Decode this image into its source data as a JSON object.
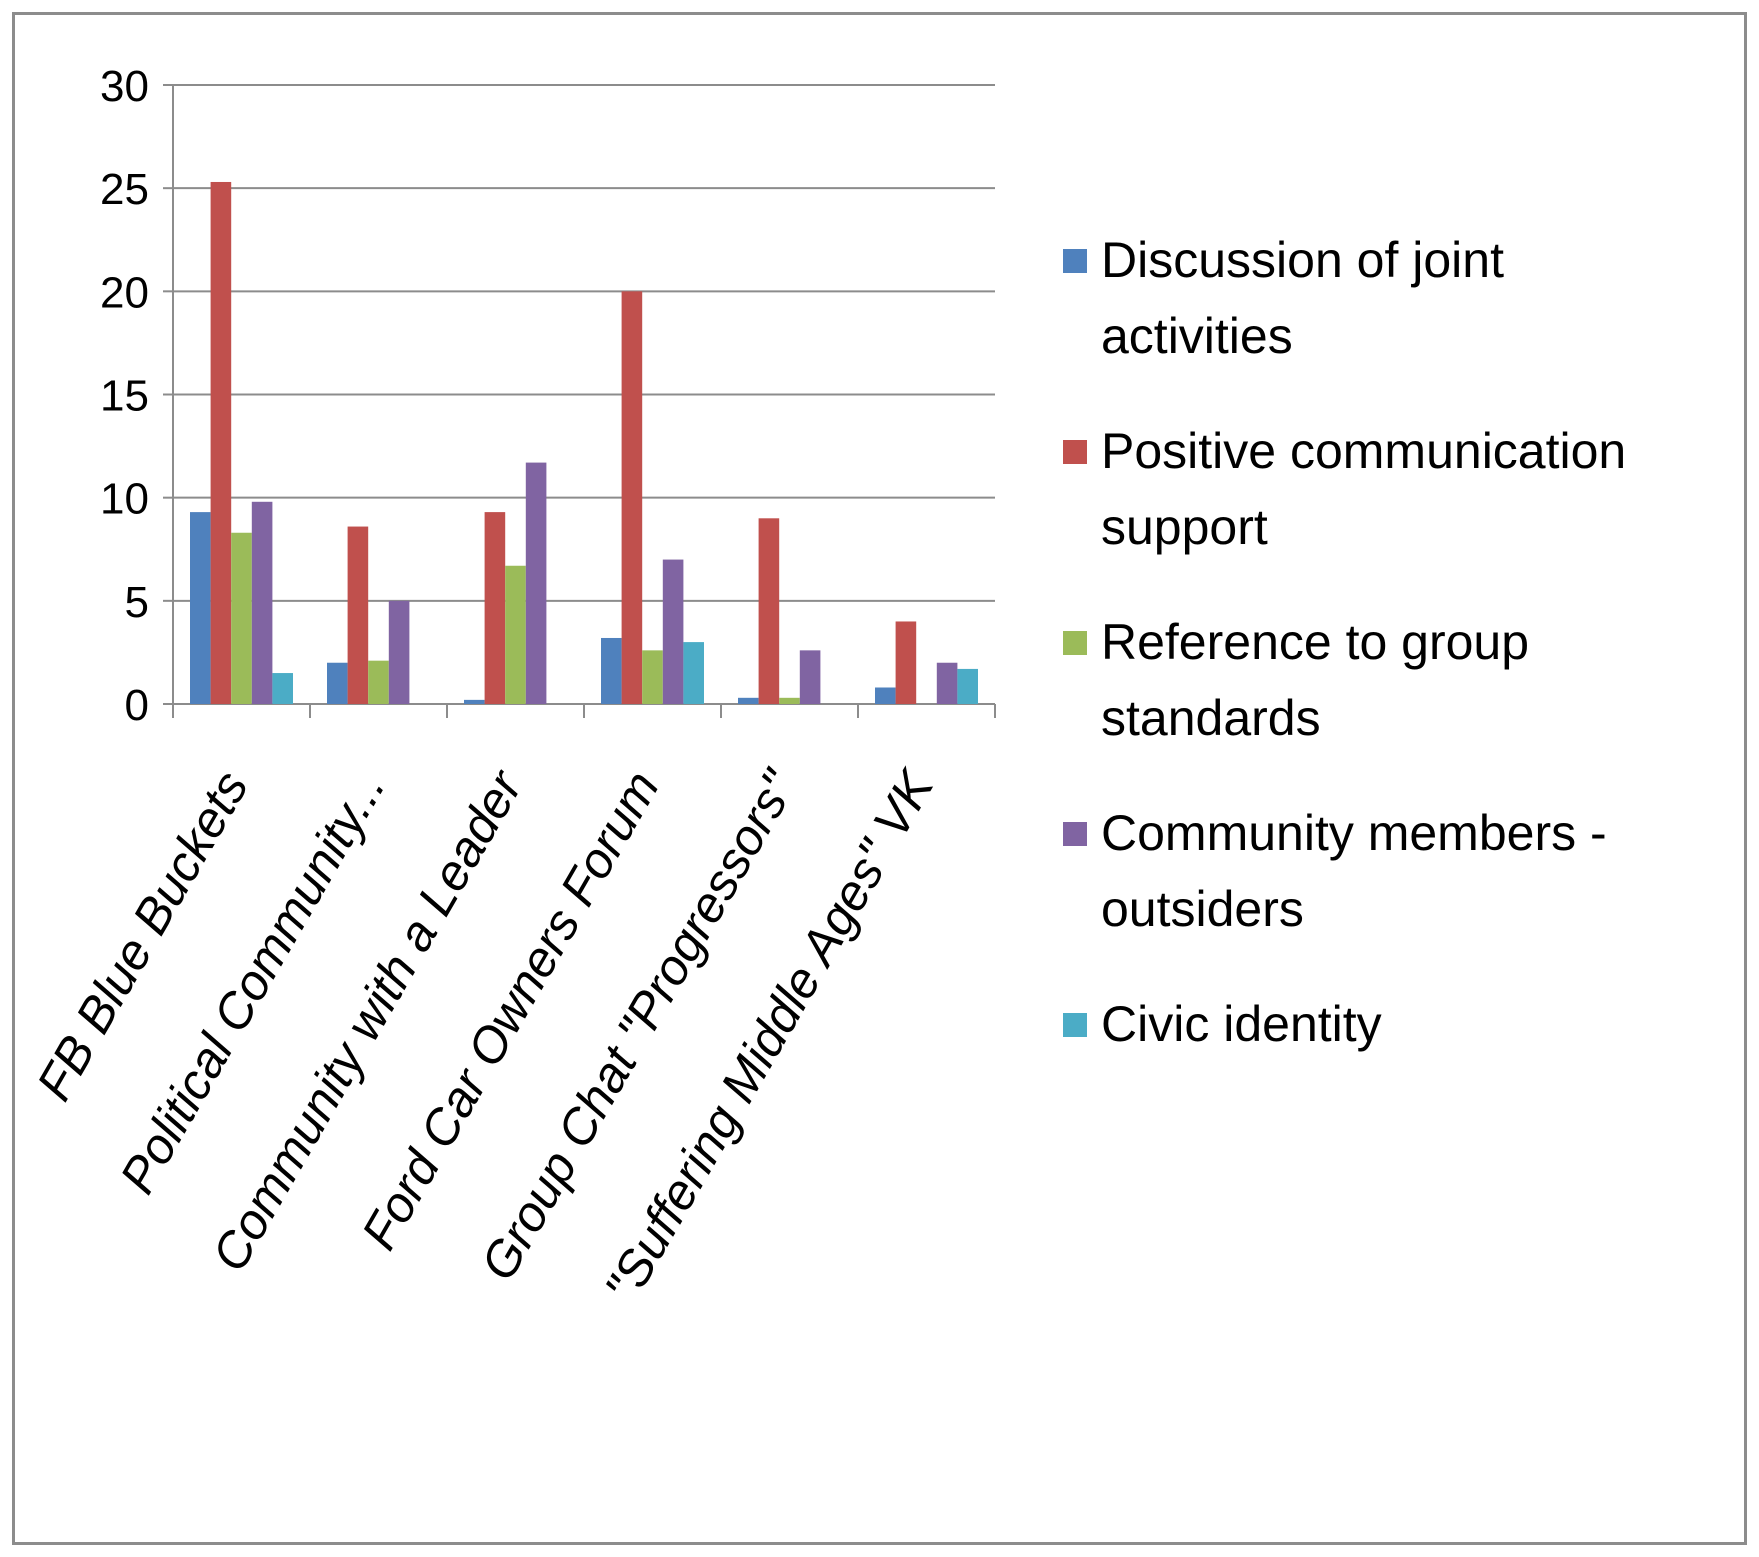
{
  "chart_data": {
    "type": "bar",
    "title": "",
    "xlabel": "",
    "ylabel": "",
    "ylim": [
      0,
      30
    ],
    "yticks": [
      0,
      5,
      10,
      15,
      20,
      25,
      30
    ],
    "grid": true,
    "legend_position": "right",
    "categories": [
      "FB Blue Buckets",
      "Political Community...",
      "Community with a Leader",
      "Ford Car Owners Forum",
      "Group Chat \"Progressors\"",
      "\"Suffering Middle Ages\" VK"
    ],
    "series": [
      {
        "name": "Discussion of joint activities",
        "legend_lines": [
          "Discussion of joint",
          "activities"
        ],
        "color": "#4f81bd",
        "values": [
          9.3,
          2.0,
          0.2,
          3.2,
          0.3,
          0.8
        ]
      },
      {
        "name": "Positive communication support",
        "legend_lines": [
          "Positive communication",
          "support"
        ],
        "color": "#c0504d",
        "values": [
          25.3,
          8.6,
          9.3,
          20.0,
          9.0,
          4.0
        ]
      },
      {
        "name": "Reference to group standards",
        "legend_lines": [
          "Reference to group",
          "standards"
        ],
        "color": "#9bbb59",
        "values": [
          8.3,
          2.1,
          6.7,
          2.6,
          0.3,
          0
        ]
      },
      {
        "name": "Community members - outsiders",
        "legend_lines": [
          "Community members -",
          "outsiders"
        ],
        "color": "#8064a2",
        "values": [
          9.8,
          5.0,
          11.7,
          7.0,
          2.6,
          2.0
        ]
      },
      {
        "name": "Civic identity",
        "legend_lines": [
          "Civic identity"
        ],
        "color": "#4bacc6",
        "values": [
          1.5,
          0,
          0,
          3.0,
          0,
          1.7
        ]
      }
    ]
  }
}
